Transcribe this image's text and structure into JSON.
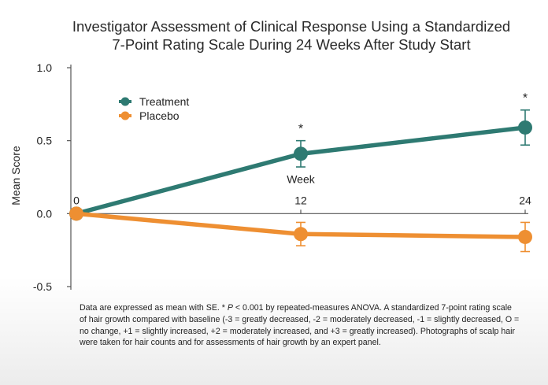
{
  "chart_data": {
    "type": "line",
    "title_lines": [
      "Investigator Assessment of Clinical Response Using a Standardized",
      "7-Point Rating Scale During 24 Weeks After Study Start"
    ],
    "xlabel": "Week",
    "ylabel": "Mean Score",
    "x": [
      0,
      12,
      24
    ],
    "x_tick_labels": [
      "0",
      "12",
      "24"
    ],
    "xlim": [
      0,
      24
    ],
    "ylim": [
      -0.5,
      1.0
    ],
    "y_ticks": [
      -0.5,
      0.0,
      0.5,
      1.0
    ],
    "y_tick_labels": [
      "-0.5",
      "0.0",
      "0.5",
      "1.0"
    ],
    "grid": false,
    "legend_position": "top-left",
    "series": [
      {
        "name": "Treatment",
        "color": "#2e7a72",
        "values": [
          0.0,
          0.41,
          0.59
        ],
        "error": [
          0,
          0.09,
          0.12
        ],
        "significance": [
          "",
          "*",
          "*"
        ]
      },
      {
        "name": "Placebo",
        "color": "#ee8f32",
        "values": [
          0.0,
          -0.14,
          -0.16
        ],
        "error": [
          0,
          0.08,
          0.1
        ],
        "significance": [
          "",
          "",
          ""
        ]
      }
    ]
  },
  "footnote": {
    "prefix": "Data are expressed as mean with SE. * ",
    "p_symbol": "P",
    "rest": " < 0.001 by repeated-measures ANOVA. A standardized 7-point rating scale of hair growth compared with baseline (-3 = greatly decreased, -2 = moderately decreased, -1 = slightly decreased, O = no change, +1 = slightly increased, +2 = moderately increased, and +3 = greatly increased). Photographs of scalp hair were taken for hair counts and for assessments of hair growth by an expert panel."
  }
}
